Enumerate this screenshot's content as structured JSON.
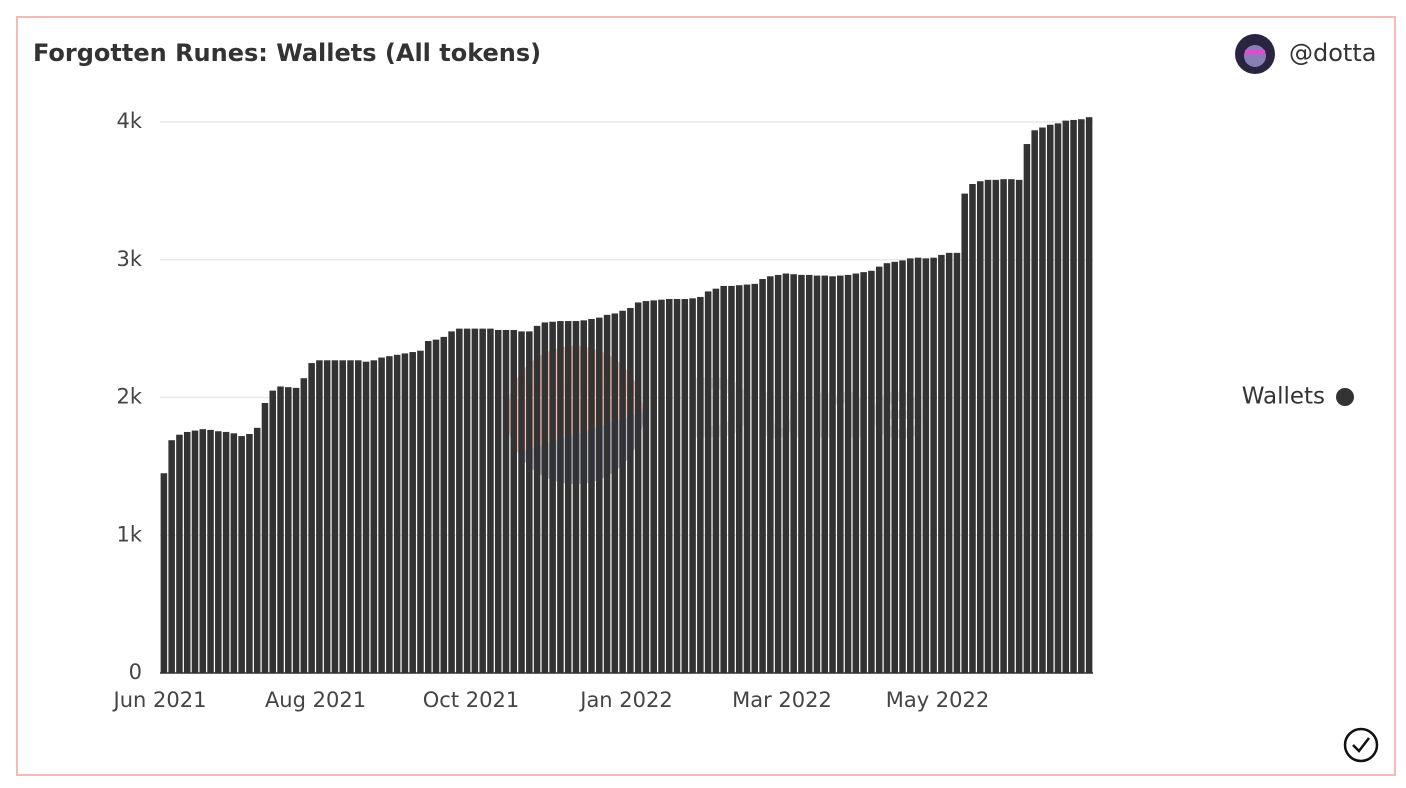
{
  "chart_data": {
    "type": "bar",
    "title": "Forgotten Runes: Wallets (All tokens)",
    "author": "@dotta",
    "watermark": "Dune",
    "categories": [
      "Jun 2021",
      null,
      null,
      null,
      null,
      null,
      null,
      null,
      null,
      null,
      null,
      null,
      null,
      null,
      null,
      null,
      null,
      null,
      null,
      null,
      "Aug 2021",
      null,
      null,
      null,
      null,
      null,
      null,
      null,
      null,
      null,
      null,
      null,
      null,
      null,
      null,
      null,
      null,
      null,
      null,
      null,
      "Oct 2021",
      null,
      null,
      null,
      null,
      null,
      null,
      null,
      null,
      null,
      null,
      null,
      null,
      null,
      null,
      null,
      null,
      null,
      null,
      null,
      "Jan 2022",
      null,
      null,
      null,
      null,
      null,
      null,
      null,
      null,
      null,
      null,
      null,
      null,
      null,
      null,
      null,
      null,
      null,
      null,
      null,
      "Mar 2022",
      null,
      null,
      null,
      null,
      null,
      null,
      null,
      null,
      null,
      null,
      null,
      null,
      null,
      null,
      null,
      null,
      null,
      null,
      null,
      "May 2022",
      null,
      null,
      null,
      null,
      null,
      null,
      null,
      null,
      null,
      null,
      null,
      null,
      null,
      null,
      null,
      null,
      null,
      null,
      null
    ],
    "series": [
      {
        "name": "Wallets",
        "color": "#333333",
        "values": [
          1450,
          1690,
          1730,
          1750,
          1760,
          1770,
          1765,
          1755,
          1750,
          1740,
          1720,
          1735,
          1780,
          1960,
          2050,
          2080,
          2075,
          2070,
          2140,
          2250,
          2270,
          2270,
          2270,
          2270,
          2270,
          2270,
          2260,
          2270,
          2290,
          2300,
          2310,
          2320,
          2330,
          2340,
          2410,
          2420,
          2440,
          2480,
          2500,
          2500,
          2500,
          2500,
          2500,
          2490,
          2490,
          2490,
          2480,
          2480,
          2520,
          2545,
          2550,
          2555,
          2555,
          2555,
          2560,
          2570,
          2580,
          2600,
          2610,
          2630,
          2650,
          2690,
          2700,
          2705,
          2710,
          2715,
          2715,
          2715,
          2720,
          2730,
          2770,
          2790,
          2810,
          2810,
          2815,
          2820,
          2825,
          2860,
          2880,
          2890,
          2900,
          2895,
          2890,
          2890,
          2885,
          2885,
          2880,
          2885,
          2890,
          2900,
          2910,
          2920,
          2950,
          2975,
          2985,
          2995,
          3010,
          3015,
          3010,
          3015,
          3035,
          3050,
          3050,
          3480,
          3550,
          3570,
          3580,
          3580,
          3585,
          3585,
          3580,
          3840,
          3940,
          3960,
          3980,
          3990,
          4010,
          4015,
          4020,
          4035
        ]
      }
    ],
    "ylim": [
      0,
      4000
    ],
    "yticks": [
      0,
      {
        "value": 1000,
        "label": "1k"
      },
      {
        "value": 2000,
        "label": "2k"
      },
      {
        "value": 3000,
        "label": "3k"
      },
      {
        "value": 4000,
        "label": "4k"
      }
    ],
    "grid": true,
    "legend": "right"
  }
}
